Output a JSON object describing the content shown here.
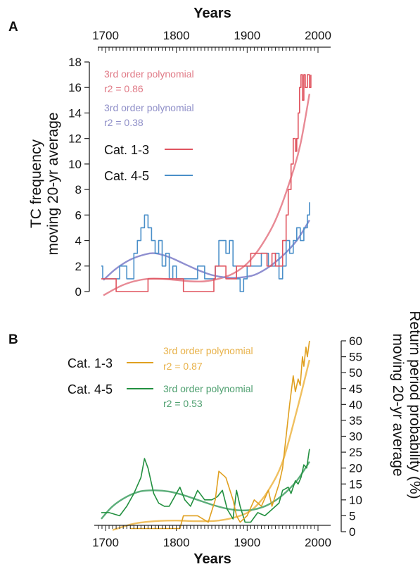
{
  "chart_data": [
    {
      "panel_label": "A",
      "type": "line",
      "xlabel": "Years",
      "xlim": [
        1690,
        2000
      ],
      "xticks": [
        "1700",
        "1800",
        "1900",
        "2000"
      ],
      "ylabel_lines": [
        "TC frequency",
        "moving 20-yr average"
      ],
      "ylim": [
        0,
        18
      ],
      "yticks": [
        "0",
        "2",
        "4",
        "6",
        "8",
        "10",
        "12",
        "14",
        "16",
        "18"
      ],
      "legend_position": "middle-left",
      "colors": {
        "cat13": "#e0545f",
        "cat45": "#4a8fc9",
        "fit13": "#e88a95",
        "fit45": "#8f8fd0",
        "annot13": "#e07a86",
        "annot45": "#8f8fc8"
      },
      "annotations": [
        {
          "text": [
            "3rd order polynomial",
            "r2 = 0.86"
          ],
          "series": "Cat. 1-3"
        },
        {
          "text": [
            "3rd order polynomial",
            "r2 = 0.38"
          ],
          "series": "Cat. 4-5"
        }
      ],
      "series": [
        {
          "name": "Cat. 1-3",
          "kind": "step",
          "x": [
            1694,
            1705,
            1715,
            1750,
            1760,
            1800,
            1810,
            1850,
            1853,
            1855,
            1870,
            1885,
            1895,
            1905,
            1920,
            1928,
            1935,
            1940,
            1950,
            1955,
            1958,
            1962,
            1965,
            1968,
            1970,
            1972,
            1974,
            1976,
            1978,
            1980,
            1982,
            1985,
            1988,
            1990
          ],
          "y": [
            1,
            1,
            0,
            0,
            1,
            1,
            0,
            0,
            1,
            2,
            1,
            2,
            2,
            3,
            3,
            2,
            3,
            2,
            4,
            6,
            8,
            10,
            12,
            11,
            12,
            14,
            16,
            17,
            15,
            17,
            16,
            17,
            16,
            17
          ]
        },
        {
          "name": "Cat. 4-5",
          "kind": "step",
          "x": [
            1694,
            1696,
            1700,
            1710,
            1720,
            1730,
            1740,
            1745,
            1750,
            1755,
            1760,
            1765,
            1770,
            1775,
            1780,
            1785,
            1790,
            1795,
            1800,
            1810,
            1820,
            1830,
            1840,
            1850,
            1855,
            1860,
            1870,
            1875,
            1880,
            1885,
            1890,
            1895,
            1900,
            1910,
            1920,
            1930,
            1940,
            1945,
            1950,
            1955,
            1960,
            1965,
            1970,
            1975,
            1980,
            1985,
            1988
          ],
          "y": [
            2,
            1,
            1,
            1,
            2,
            1,
            3,
            4,
            5,
            6,
            5,
            4,
            3,
            4,
            2,
            3,
            1,
            2,
            1,
            1,
            1,
            2,
            1,
            1,
            2,
            4,
            3,
            4,
            2,
            1,
            0,
            1,
            2,
            2,
            3,
            2,
            3,
            1,
            2,
            4,
            3,
            4,
            5,
            4,
            5,
            6,
            7
          ]
        },
        {
          "name": "Cat. 1-3 polynomial fit",
          "kind": "smooth",
          "x": [
            1697,
            1720,
            1740,
            1760,
            1780,
            1800,
            1820,
            1840,
            1860,
            1880,
            1900,
            1920,
            1940,
            1960,
            1975,
            1988
          ],
          "y": [
            -0.3,
            0.4,
            0.8,
            1.0,
            1.0,
            0.9,
            0.8,
            0.8,
            1.0,
            1.4,
            2.2,
            3.6,
            5.6,
            8.6,
            11.5,
            15.5
          ]
        },
        {
          "name": "Cat. 4-5 polynomial fit",
          "kind": "smooth",
          "x": [
            1697,
            1715,
            1735,
            1755,
            1770,
            1790,
            1810,
            1830,
            1850,
            1870,
            1890,
            1910,
            1930,
            1950,
            1970,
            1988
          ],
          "y": [
            0.9,
            1.8,
            2.5,
            2.9,
            3.0,
            2.7,
            2.2,
            1.7,
            1.3,
            1.1,
            1.1,
            1.3,
            1.9,
            2.8,
            4.0,
            5.6
          ]
        }
      ]
    },
    {
      "panel_label": "B",
      "type": "line",
      "xlabel": "Years",
      "xlim": [
        1690,
        2000
      ],
      "xticks": [
        "1700",
        "1800",
        "1900",
        "2000"
      ],
      "ylabel_lines": [
        "Return period probability (%)",
        "moving 20-yr average"
      ],
      "ylim": [
        0,
        60
      ],
      "yticks": [
        "0",
        "5",
        "10",
        "15",
        "20",
        "25",
        "30",
        "35",
        "40",
        "45",
        "50",
        "55",
        "60"
      ],
      "legend_position": "upper-left",
      "colors": {
        "cat13": "#e0a020",
        "cat45": "#239040",
        "fit13": "#f0c060",
        "fit45": "#5cae7a",
        "annot13": "#e8b24a",
        "annot45": "#4fa070"
      },
      "annotations": [
        {
          "text": [
            "3rd order polynomial",
            "r2 = 0.87"
          ],
          "series": "Cat. 1-3"
        },
        {
          "text": [
            "3rd order polynomial",
            "r2 = 0.53"
          ],
          "series": "Cat. 4-5"
        }
      ],
      "series": [
        {
          "name": "Cat. 1-3",
          "kind": "line",
          "x": [
            1735,
            1805,
            1810,
            1830,
            1845,
            1855,
            1860,
            1870,
            1880,
            1885,
            1890,
            1900,
            1910,
            1920,
            1930,
            1935,
            1945,
            1950,
            1955,
            1960,
            1965,
            1968,
            1972,
            1975,
            1978,
            1980,
            1983,
            1985,
            1988
          ],
          "y": [
            1,
            1,
            5,
            5,
            3,
            10,
            19,
            17,
            10,
            5,
            3,
            5,
            10,
            8,
            13,
            8,
            15,
            20,
            30,
            40,
            49,
            44,
            48,
            46,
            55,
            52,
            58,
            55,
            60
          ]
        },
        {
          "name": "Cat. 4-5",
          "kind": "line",
          "x": [
            1694,
            1705,
            1720,
            1730,
            1740,
            1750,
            1755,
            1760,
            1768,
            1775,
            1783,
            1790,
            1800,
            1805,
            1812,
            1820,
            1830,
            1840,
            1850,
            1858,
            1865,
            1872,
            1880,
            1885,
            1890,
            1897,
            1905,
            1915,
            1925,
            1935,
            1945,
            1950,
            1958,
            1962,
            1968,
            1972,
            1976,
            1980,
            1984,
            1988
          ],
          "y": [
            6,
            6,
            5,
            8,
            12,
            17,
            23,
            20,
            12,
            9,
            8,
            8,
            12,
            14,
            10,
            8,
            13,
            10,
            10,
            11,
            13,
            7,
            4,
            13,
            8,
            3,
            3,
            6,
            5,
            7,
            9,
            13,
            14,
            12,
            16,
            15,
            17,
            21,
            20,
            26
          ]
        },
        {
          "name": "Cat. 1-3 polynomial fit",
          "kind": "smooth",
          "x": [
            1710,
            1740,
            1770,
            1800,
            1830,
            1860,
            1890,
            1910,
            1930,
            1950,
            1970,
            1988
          ],
          "y": [
            0.5,
            2.5,
            3.3,
            3.5,
            3.3,
            3.5,
            5.0,
            7.5,
            13.0,
            22.0,
            38.0,
            54.0
          ]
        },
        {
          "name": "Cat. 4-5 polynomial fit",
          "kind": "smooth",
          "x": [
            1694,
            1710,
            1730,
            1750,
            1770,
            1790,
            1810,
            1830,
            1850,
            1870,
            1890,
            1910,
            1930,
            1950,
            1970,
            1988
          ],
          "y": [
            4.0,
            8.0,
            11.0,
            12.7,
            13.0,
            12.6,
            11.5,
            10.0,
            8.5,
            7.3,
            6.7,
            7.0,
            8.5,
            11.5,
            16.0,
            22.0
          ]
        }
      ]
    }
  ]
}
